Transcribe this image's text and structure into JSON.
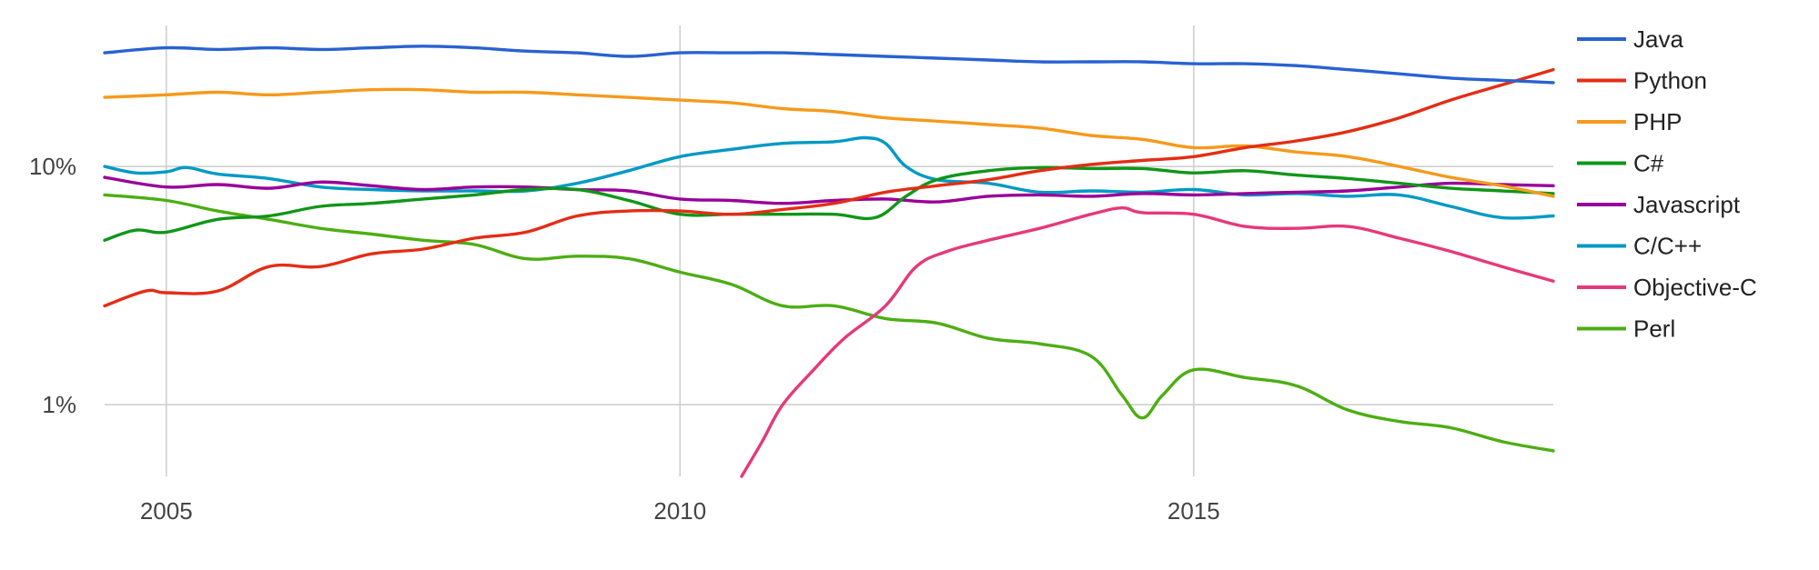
{
  "chart_data": {
    "type": "line",
    "y_scale": "log",
    "ylim": [
      0.5,
      50
    ],
    "xlim": [
      2004.4,
      2018.5
    ],
    "x_ticks": [
      {
        "value": 2005,
        "label": "2005"
      },
      {
        "value": 2010,
        "label": "2010"
      },
      {
        "value": 2015,
        "label": "2015"
      }
    ],
    "y_ticks": [
      {
        "value": 10,
        "label": "10%"
      },
      {
        "value": 1,
        "label": "1%"
      }
    ],
    "grid": true,
    "legend_position": "right",
    "series": [
      {
        "name": "Java",
        "color": "#2962d0",
        "points": [
          [
            2004.4,
            30
          ],
          [
            2005,
            31.5
          ],
          [
            2005.5,
            31
          ],
          [
            2006,
            31.5
          ],
          [
            2006.5,
            31
          ],
          [
            2007,
            31.5
          ],
          [
            2007.5,
            32
          ],
          [
            2008,
            31.5
          ],
          [
            2008.5,
            30.5
          ],
          [
            2009,
            30
          ],
          [
            2009.5,
            29
          ],
          [
            2010,
            30
          ],
          [
            2010.5,
            30
          ],
          [
            2011,
            30
          ],
          [
            2011.5,
            29.5
          ],
          [
            2012,
            29
          ],
          [
            2012.5,
            28.5
          ],
          [
            2013,
            28
          ],
          [
            2013.5,
            27.5
          ],
          [
            2014,
            27.5
          ],
          [
            2014.5,
            27.5
          ],
          [
            2015,
            27
          ],
          [
            2015.5,
            27
          ],
          [
            2016,
            26.5
          ],
          [
            2016.5,
            25.5
          ],
          [
            2017,
            24.5
          ],
          [
            2017.5,
            23.5
          ],
          [
            2018,
            23
          ],
          [
            2018.5,
            22.5
          ]
        ]
      },
      {
        "name": "Python",
        "color": "#e42d15",
        "points": [
          [
            2004.4,
            2.6
          ],
          [
            2004.8,
            3.0
          ],
          [
            2005,
            2.95
          ],
          [
            2005.5,
            3.0
          ],
          [
            2006,
            3.8
          ],
          [
            2006.5,
            3.8
          ],
          [
            2007,
            4.3
          ],
          [
            2007.5,
            4.5
          ],
          [
            2008,
            5.0
          ],
          [
            2008.5,
            5.3
          ],
          [
            2009,
            6.2
          ],
          [
            2009.5,
            6.5
          ],
          [
            2010,
            6.5
          ],
          [
            2010.5,
            6.3
          ],
          [
            2011,
            6.6
          ],
          [
            2011.5,
            7.0
          ],
          [
            2012,
            7.8
          ],
          [
            2012.5,
            8.3
          ],
          [
            2013,
            8.8
          ],
          [
            2013.5,
            9.6
          ],
          [
            2014,
            10.2
          ],
          [
            2014.5,
            10.6
          ],
          [
            2015,
            11
          ],
          [
            2015.5,
            12
          ],
          [
            2016,
            12.8
          ],
          [
            2016.5,
            14
          ],
          [
            2017,
            16
          ],
          [
            2017.5,
            19
          ],
          [
            2018,
            22
          ],
          [
            2018.5,
            25.5
          ]
        ]
      },
      {
        "name": "PHP",
        "color": "#f59a1b",
        "points": [
          [
            2004.4,
            19.5
          ],
          [
            2005,
            20
          ],
          [
            2005.5,
            20.5
          ],
          [
            2006,
            20
          ],
          [
            2006.5,
            20.5
          ],
          [
            2007,
            21
          ],
          [
            2007.5,
            21
          ],
          [
            2008,
            20.5
          ],
          [
            2008.5,
            20.5
          ],
          [
            2009,
            20
          ],
          [
            2009.5,
            19.5
          ],
          [
            2010,
            19
          ],
          [
            2010.5,
            18.5
          ],
          [
            2011,
            17.5
          ],
          [
            2011.5,
            17
          ],
          [
            2012,
            16
          ],
          [
            2012.5,
            15.5
          ],
          [
            2013,
            15
          ],
          [
            2013.5,
            14.5
          ],
          [
            2014,
            13.5
          ],
          [
            2014.5,
            13
          ],
          [
            2015,
            12
          ],
          [
            2015.5,
            12.2
          ],
          [
            2016,
            11.5
          ],
          [
            2016.5,
            11
          ],
          [
            2017,
            10
          ],
          [
            2017.5,
            9
          ],
          [
            2018,
            8.3
          ],
          [
            2018.5,
            7.5
          ]
        ]
      },
      {
        "name": "C#",
        "color": "#109618",
        "points": [
          [
            2004.4,
            4.9
          ],
          [
            2004.7,
            5.4
          ],
          [
            2005,
            5.3
          ],
          [
            2005.5,
            6.0
          ],
          [
            2006,
            6.2
          ],
          [
            2006.5,
            6.8
          ],
          [
            2007,
            7.0
          ],
          [
            2007.5,
            7.3
          ],
          [
            2008,
            7.6
          ],
          [
            2008.5,
            8.0
          ],
          [
            2009,
            8.0
          ],
          [
            2009.5,
            7.2
          ],
          [
            2010,
            6.3
          ],
          [
            2010.5,
            6.3
          ],
          [
            2011,
            6.3
          ],
          [
            2011.5,
            6.3
          ],
          [
            2011.9,
            6.1
          ],
          [
            2012.2,
            7.5
          ],
          [
            2012.5,
            8.8
          ],
          [
            2013,
            9.6
          ],
          [
            2013.5,
            9.9
          ],
          [
            2014,
            9.8
          ],
          [
            2014.5,
            9.8
          ],
          [
            2015,
            9.4
          ],
          [
            2015.5,
            9.6
          ],
          [
            2016,
            9.2
          ],
          [
            2016.5,
            8.9
          ],
          [
            2017,
            8.5
          ],
          [
            2017.5,
            8.1
          ],
          [
            2018,
            7.9
          ],
          [
            2018.5,
            7.7
          ]
        ]
      },
      {
        "name": "Javascript",
        "color": "#990099",
        "points": [
          [
            2004.4,
            9
          ],
          [
            2005,
            8.2
          ],
          [
            2005.5,
            8.4
          ],
          [
            2006,
            8.1
          ],
          [
            2006.5,
            8.6
          ],
          [
            2007,
            8.3
          ],
          [
            2007.5,
            8.0
          ],
          [
            2008,
            8.2
          ],
          [
            2008.5,
            8.2
          ],
          [
            2009,
            8.0
          ],
          [
            2009.5,
            7.9
          ],
          [
            2010,
            7.3
          ],
          [
            2010.5,
            7.2
          ],
          [
            2011,
            7.0
          ],
          [
            2011.5,
            7.2
          ],
          [
            2012,
            7.3
          ],
          [
            2012.5,
            7.1
          ],
          [
            2013,
            7.5
          ],
          [
            2013.5,
            7.6
          ],
          [
            2014,
            7.5
          ],
          [
            2014.5,
            7.7
          ],
          [
            2015,
            7.6
          ],
          [
            2015.5,
            7.7
          ],
          [
            2016,
            7.8
          ],
          [
            2016.5,
            7.9
          ],
          [
            2017,
            8.2
          ],
          [
            2017.5,
            8.5
          ],
          [
            2018,
            8.4
          ],
          [
            2018.5,
            8.3
          ]
        ]
      },
      {
        "name": "C/C++",
        "color": "#0099c6",
        "points": [
          [
            2004.4,
            10
          ],
          [
            2004.7,
            9.4
          ],
          [
            2005,
            9.5
          ],
          [
            2005.2,
            9.9
          ],
          [
            2005.5,
            9.3
          ],
          [
            2006,
            8.9
          ],
          [
            2006.5,
            8.2
          ],
          [
            2007,
            8.0
          ],
          [
            2007.5,
            7.9
          ],
          [
            2008,
            7.9
          ],
          [
            2008.5,
            7.9
          ],
          [
            2009,
            8.5
          ],
          [
            2009.5,
            9.6
          ],
          [
            2010,
            11
          ],
          [
            2010.5,
            11.8
          ],
          [
            2011,
            12.5
          ],
          [
            2011.5,
            12.7
          ],
          [
            2011.8,
            13.2
          ],
          [
            2012,
            12.5
          ],
          [
            2012.2,
            10
          ],
          [
            2012.5,
            8.8
          ],
          [
            2013,
            8.5
          ],
          [
            2013.5,
            7.8
          ],
          [
            2014,
            7.9
          ],
          [
            2014.5,
            7.8
          ],
          [
            2015,
            8.0
          ],
          [
            2015.5,
            7.6
          ],
          [
            2016,
            7.7
          ],
          [
            2016.5,
            7.5
          ],
          [
            2017,
            7.6
          ],
          [
            2017.5,
            6.8
          ],
          [
            2018,
            6.1
          ],
          [
            2018.5,
            6.2
          ]
        ]
      },
      {
        "name": "Objective-C",
        "color": "#e5397a",
        "points": [
          [
            2010.6,
            0.5
          ],
          [
            2010.8,
            0.7
          ],
          [
            2011,
            1.0
          ],
          [
            2011.3,
            1.4
          ],
          [
            2011.6,
            1.9
          ],
          [
            2012,
            2.6
          ],
          [
            2012.3,
            3.8
          ],
          [
            2012.6,
            4.4
          ],
          [
            2013,
            4.9
          ],
          [
            2013.5,
            5.5
          ],
          [
            2014,
            6.3
          ],
          [
            2014.3,
            6.7
          ],
          [
            2014.5,
            6.4
          ],
          [
            2015,
            6.3
          ],
          [
            2015.5,
            5.6
          ],
          [
            2016,
            5.5
          ],
          [
            2016.5,
            5.6
          ],
          [
            2017,
            5.0
          ],
          [
            2017.5,
            4.4
          ],
          [
            2018,
            3.8
          ],
          [
            2018.5,
            3.3
          ]
        ]
      },
      {
        "name": "Perl",
        "color": "#4cae13",
        "points": [
          [
            2004.4,
            7.6
          ],
          [
            2005,
            7.2
          ],
          [
            2005.5,
            6.5
          ],
          [
            2006,
            6.0
          ],
          [
            2006.5,
            5.5
          ],
          [
            2007,
            5.2
          ],
          [
            2007.5,
            4.9
          ],
          [
            2008,
            4.7
          ],
          [
            2008.5,
            4.1
          ],
          [
            2009,
            4.2
          ],
          [
            2009.5,
            4.1
          ],
          [
            2010,
            3.6
          ],
          [
            2010.5,
            3.2
          ],
          [
            2011,
            2.6
          ],
          [
            2011.5,
            2.6
          ],
          [
            2012,
            2.3
          ],
          [
            2012.5,
            2.2
          ],
          [
            2013,
            1.9
          ],
          [
            2013.5,
            1.8
          ],
          [
            2014,
            1.6
          ],
          [
            2014.3,
            1.1
          ],
          [
            2014.5,
            0.88
          ],
          [
            2014.7,
            1.1
          ],
          [
            2015,
            1.4
          ],
          [
            2015.5,
            1.3
          ],
          [
            2016,
            1.2
          ],
          [
            2016.5,
            0.95
          ],
          [
            2017,
            0.85
          ],
          [
            2017.5,
            0.8
          ],
          [
            2018,
            0.7
          ],
          [
            2018.5,
            0.64
          ]
        ]
      }
    ]
  }
}
